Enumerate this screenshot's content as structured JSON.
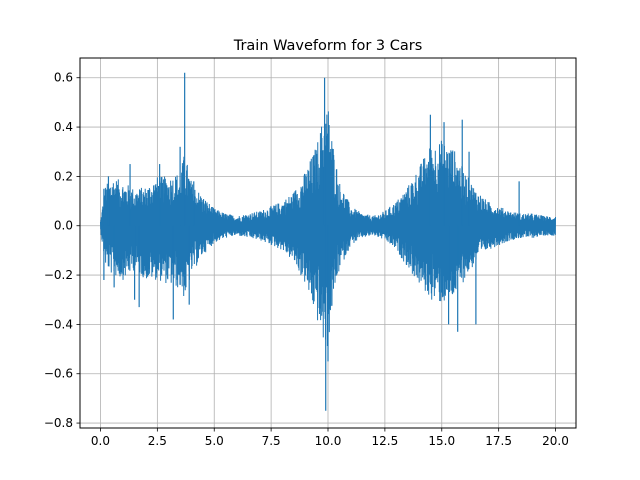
{
  "chart_data": {
    "type": "line",
    "title": "Train Waveform for 3 Cars",
    "xlabel": "",
    "ylabel": "",
    "xlim": [
      -0.9,
      20.9
    ],
    "ylim": [
      -0.82,
      0.68
    ],
    "x_ticks": [
      0.0,
      2.5,
      5.0,
      7.5,
      10.0,
      12.5,
      15.0,
      17.5,
      20.0
    ],
    "x_tick_labels": [
      "0.0",
      "2.5",
      "5.0",
      "7.5",
      "10.0",
      "12.5",
      "15.0",
      "17.5",
      "20.0"
    ],
    "y_ticks": [
      -0.8,
      -0.6,
      -0.4,
      -0.2,
      0.0,
      0.2,
      0.4,
      0.6
    ],
    "y_tick_labels": [
      "−0.8",
      "−0.6",
      "−0.4",
      "−0.2",
      "0.0",
      "0.2",
      "0.4",
      "0.6"
    ],
    "grid": true,
    "line_color": "#1f77b4",
    "series": [
      {
        "envelope": {
          "x": [
            0.0,
            0.2,
            0.5,
            1.0,
            1.5,
            2.0,
            2.5,
            3.0,
            3.5,
            3.7,
            4.0,
            4.5,
            5.0,
            5.5,
            6.0,
            6.5,
            7.0,
            7.5,
            8.0,
            8.5,
            9.0,
            9.5,
            9.8,
            10.0,
            10.2,
            10.5,
            11.0,
            11.5,
            12.0,
            12.5,
            13.0,
            13.5,
            14.0,
            14.5,
            15.0,
            15.5,
            16.0,
            16.5,
            17.0,
            17.5,
            18.0,
            18.5,
            19.0,
            19.5,
            20.0
          ],
          "upper": [
            0.02,
            0.16,
            0.2,
            0.18,
            0.15,
            0.16,
            0.2,
            0.2,
            0.22,
            0.3,
            0.18,
            0.12,
            0.07,
            0.05,
            0.04,
            0.05,
            0.06,
            0.08,
            0.1,
            0.14,
            0.22,
            0.33,
            0.45,
            0.5,
            0.35,
            0.18,
            0.08,
            0.05,
            0.04,
            0.06,
            0.1,
            0.16,
            0.24,
            0.33,
            0.35,
            0.32,
            0.22,
            0.15,
            0.1,
            0.08,
            0.06,
            0.05,
            0.05,
            0.04,
            0.04
          ],
          "lower": [
            -0.02,
            -0.16,
            -0.2,
            -0.22,
            -0.18,
            -0.22,
            -0.22,
            -0.24,
            -0.26,
            -0.3,
            -0.2,
            -0.12,
            -0.07,
            -0.05,
            -0.04,
            -0.05,
            -0.06,
            -0.08,
            -0.1,
            -0.15,
            -0.24,
            -0.38,
            -0.48,
            -0.5,
            -0.32,
            -0.18,
            -0.08,
            -0.05,
            -0.04,
            -0.06,
            -0.1,
            -0.17,
            -0.24,
            -0.3,
            -0.32,
            -0.3,
            -0.22,
            -0.15,
            -0.1,
            -0.08,
            -0.06,
            -0.05,
            -0.05,
            -0.04,
            -0.04
          ]
        },
        "spikes": [
          {
            "x": 0.15,
            "y": -0.22
          },
          {
            "x": 0.15,
            "y": 0.15
          },
          {
            "x": 0.35,
            "y": 0.2
          },
          {
            "x": 0.6,
            "y": -0.25
          },
          {
            "x": 1.3,
            "y": 0.25
          },
          {
            "x": 1.5,
            "y": -0.3
          },
          {
            "x": 1.7,
            "y": -0.33
          },
          {
            "x": 2.6,
            "y": 0.25
          },
          {
            "x": 3.2,
            "y": -0.38
          },
          {
            "x": 3.5,
            "y": 0.32
          },
          {
            "x": 3.7,
            "y": 0.62
          },
          {
            "x": 3.9,
            "y": -0.32
          },
          {
            "x": 4.1,
            "y": 0.18
          },
          {
            "x": 9.85,
            "y": 0.6
          },
          {
            "x": 9.9,
            "y": -0.75
          },
          {
            "x": 10.0,
            "y": -0.55
          },
          {
            "x": 14.5,
            "y": 0.45
          },
          {
            "x": 15.1,
            "y": 0.42
          },
          {
            "x": 15.9,
            "y": 0.43
          },
          {
            "x": 15.7,
            "y": -0.43
          },
          {
            "x": 15.3,
            "y": -0.4
          },
          {
            "x": 16.5,
            "y": -0.4
          },
          {
            "x": 16.2,
            "y": 0.3
          },
          {
            "x": 18.4,
            "y": 0.18
          }
        ]
      }
    ]
  }
}
